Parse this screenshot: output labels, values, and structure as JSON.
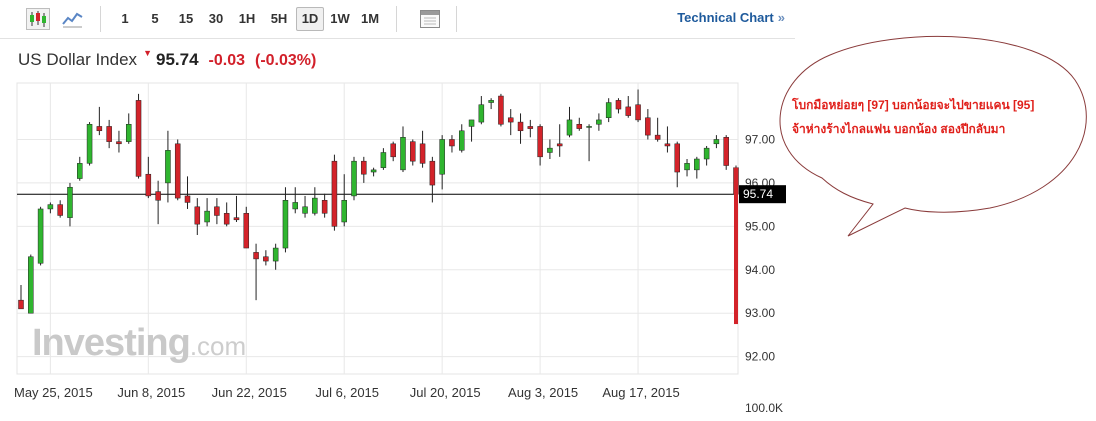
{
  "toolbar": {
    "icons": [
      "candlestick-icon",
      "line-chart-icon",
      "calendar-icon"
    ],
    "timeframes": [
      "1",
      "5",
      "15",
      "30",
      "1H",
      "5H",
      "1D",
      "1W",
      "1M"
    ],
    "active_timeframe": "1D",
    "tech_link_label": "Technical Chart",
    "tech_link_chevron": "»"
  },
  "quote": {
    "name": "US Dollar Index",
    "arrow": "▼",
    "price": "95.74",
    "change": "-0.03",
    "change_pct": "(-0.03%)"
  },
  "watermark": {
    "brand": "Investing",
    "suffix": ".com"
  },
  "annotation": {
    "line1": "โบกมือหย่อยๆ [97] บอกน้อยจะไปขายแคน [95]",
    "line2": "จ้าห่างร้างไกลแฟน   บอกน้อง   สองปีกลับมา"
  },
  "colors": {
    "up": "#2fb52f",
    "down": "#d3232a",
    "accent_text": "#e0201b",
    "link": "#1e5a9c"
  },
  "chart_data": {
    "type": "candlestick",
    "instrument": "US Dollar Index",
    "x_tick_labels": [
      "May 25, 2015",
      "Jun 8, 2015",
      "Jun 22, 2015",
      "Jul 6, 2015",
      "Jul 20, 2015",
      "Aug 3, 2015",
      "Aug 17, 2015"
    ],
    "y_tick_labels": [
      "97.00",
      "96.00",
      "95.00",
      "94.00",
      "93.00",
      "92.00"
    ],
    "y_ticks": [
      97,
      96,
      95,
      94,
      93,
      92
    ],
    "ylim": [
      91.6,
      98.3
    ],
    "volume_label": "100.0K",
    "last_price_label": "95.74",
    "horizontal_line": 95.74,
    "grid": true,
    "candles": [
      {
        "o": 93.3,
        "h": 93.65,
        "l": 93.15,
        "c": 93.1
      },
      {
        "o": 93.0,
        "h": 94.35,
        "l": 93.0,
        "c": 94.3
      },
      {
        "o": 94.15,
        "h": 95.45,
        "l": 94.1,
        "c": 95.4
      },
      {
        "o": 95.4,
        "h": 95.55,
        "l": 95.3,
        "c": 95.5
      },
      {
        "o": 95.5,
        "h": 95.6,
        "l": 95.2,
        "c": 95.25
      },
      {
        "o": 95.2,
        "h": 96.0,
        "l": 95.0,
        "c": 95.9
      },
      {
        "o": 96.1,
        "h": 96.6,
        "l": 96.05,
        "c": 96.45
      },
      {
        "o": 96.45,
        "h": 97.4,
        "l": 96.4,
        "c": 97.35
      },
      {
        "o": 97.3,
        "h": 97.75,
        "l": 97.1,
        "c": 97.2
      },
      {
        "o": 97.3,
        "h": 97.45,
        "l": 96.8,
        "c": 96.95
      },
      {
        "o": 96.95,
        "h": 97.2,
        "l": 96.7,
        "c": 96.9
      },
      {
        "o": 96.95,
        "h": 97.6,
        "l": 96.9,
        "c": 97.35
      },
      {
        "o": 97.9,
        "h": 98.05,
        "l": 96.1,
        "c": 96.15
      },
      {
        "o": 96.2,
        "h": 96.6,
        "l": 95.65,
        "c": 95.7
      },
      {
        "o": 95.8,
        "h": 96.05,
        "l": 95.05,
        "c": 95.6
      },
      {
        "o": 96.0,
        "h": 97.2,
        "l": 95.55,
        "c": 96.75
      },
      {
        "o": 96.9,
        "h": 97.0,
        "l": 95.6,
        "c": 95.65
      },
      {
        "o": 95.7,
        "h": 96.15,
        "l": 95.4,
        "c": 95.55
      },
      {
        "o": 95.45,
        "h": 95.65,
        "l": 94.8,
        "c": 95.05
      },
      {
        "o": 95.1,
        "h": 95.65,
        "l": 95.0,
        "c": 95.35
      },
      {
        "o": 95.45,
        "h": 95.65,
        "l": 95.05,
        "c": 95.25
      },
      {
        "o": 95.3,
        "h": 95.55,
        "l": 95.0,
        "c": 95.05
      },
      {
        "o": 95.2,
        "h": 95.7,
        "l": 95.1,
        "c": 95.15
      },
      {
        "o": 95.3,
        "h": 95.45,
        "l": 94.5,
        "c": 94.5
      },
      {
        "o": 94.4,
        "h": 94.6,
        "l": 93.3,
        "c": 94.25
      },
      {
        "o": 94.3,
        "h": 94.45,
        "l": 94.1,
        "c": 94.2
      },
      {
        "o": 94.2,
        "h": 94.6,
        "l": 94.0,
        "c": 94.5
      },
      {
        "o": 94.5,
        "h": 95.9,
        "l": 94.4,
        "c": 95.6
      },
      {
        "o": 95.4,
        "h": 95.9,
        "l": 95.3,
        "c": 95.55
      },
      {
        "o": 95.3,
        "h": 95.7,
        "l": 95.2,
        "c": 95.45
      },
      {
        "o": 95.3,
        "h": 95.9,
        "l": 95.25,
        "c": 95.65
      },
      {
        "o": 95.6,
        "h": 95.75,
        "l": 95.2,
        "c": 95.3
      },
      {
        "o": 96.5,
        "h": 96.65,
        "l": 94.9,
        "c": 95.0
      },
      {
        "o": 95.1,
        "h": 96.2,
        "l": 95.0,
        "c": 95.6
      },
      {
        "o": 95.7,
        "h": 96.6,
        "l": 95.6,
        "c": 96.5
      },
      {
        "o": 96.5,
        "h": 96.6,
        "l": 96.0,
        "c": 96.2
      },
      {
        "o": 96.25,
        "h": 96.35,
        "l": 96.15,
        "c": 96.3
      },
      {
        "o": 96.35,
        "h": 96.8,
        "l": 96.3,
        "c": 96.7
      },
      {
        "o": 96.9,
        "h": 96.95,
        "l": 96.5,
        "c": 96.6
      },
      {
        "o": 96.3,
        "h": 97.3,
        "l": 96.25,
        "c": 97.05
      },
      {
        "o": 96.95,
        "h": 97.0,
        "l": 96.4,
        "c": 96.5
      },
      {
        "o": 96.9,
        "h": 97.2,
        "l": 96.35,
        "c": 96.45
      },
      {
        "o": 96.5,
        "h": 96.6,
        "l": 95.55,
        "c": 95.95
      },
      {
        "o": 96.2,
        "h": 97.1,
        "l": 95.85,
        "c": 97.0
      },
      {
        "o": 97.0,
        "h": 97.1,
        "l": 96.7,
        "c": 96.85
      },
      {
        "o": 96.75,
        "h": 97.35,
        "l": 96.7,
        "c": 97.2
      },
      {
        "o": 97.3,
        "h": 97.45,
        "l": 96.95,
        "c": 97.45
      },
      {
        "o": 97.4,
        "h": 98.0,
        "l": 97.35,
        "c": 97.8
      },
      {
        "o": 97.85,
        "h": 97.95,
        "l": 97.7,
        "c": 97.9
      },
      {
        "o": 98.0,
        "h": 98.05,
        "l": 97.3,
        "c": 97.35
      },
      {
        "o": 97.5,
        "h": 97.7,
        "l": 97.1,
        "c": 97.4
      },
      {
        "o": 97.4,
        "h": 97.6,
        "l": 96.9,
        "c": 97.2
      },
      {
        "o": 97.3,
        "h": 97.45,
        "l": 97.05,
        "c": 97.25
      },
      {
        "o": 97.3,
        "h": 97.35,
        "l": 96.4,
        "c": 96.6
      },
      {
        "o": 96.7,
        "h": 97.0,
        "l": 96.55,
        "c": 96.8
      },
      {
        "o": 96.9,
        "h": 97.35,
        "l": 96.6,
        "c": 96.85
      },
      {
        "o": 97.1,
        "h": 97.75,
        "l": 97.05,
        "c": 97.45
      },
      {
        "o": 97.35,
        "h": 97.5,
        "l": 97.2,
        "c": 97.25
      },
      {
        "o": 97.3,
        "h": 97.35,
        "l": 96.5,
        "c": 97.3
      },
      {
        "o": 97.35,
        "h": 97.6,
        "l": 97.2,
        "c": 97.45
      },
      {
        "o": 97.5,
        "h": 97.95,
        "l": 97.4,
        "c": 97.85
      },
      {
        "o": 97.9,
        "h": 97.95,
        "l": 97.6,
        "c": 97.7
      },
      {
        "o": 97.75,
        "h": 98.0,
        "l": 97.5,
        "c": 97.55
      },
      {
        "o": 97.8,
        "h": 98.15,
        "l": 97.4,
        "c": 97.45
      },
      {
        "o": 97.5,
        "h": 97.7,
        "l": 97.0,
        "c": 97.1
      },
      {
        "o": 97.1,
        "h": 97.5,
        "l": 96.95,
        "c": 97.0
      },
      {
        "o": 96.9,
        "h": 97.3,
        "l": 96.7,
        "c": 96.85
      },
      {
        "o": 96.9,
        "h": 96.95,
        "l": 95.9,
        "c": 96.25
      },
      {
        "o": 96.3,
        "h": 96.55,
        "l": 96.15,
        "c": 96.45
      },
      {
        "o": 96.3,
        "h": 96.6,
        "l": 96.1,
        "c": 96.55
      },
      {
        "o": 96.55,
        "h": 96.85,
        "l": 96.4,
        "c": 96.8
      },
      {
        "o": 96.9,
        "h": 97.1,
        "l": 96.8,
        "c": 97.0
      },
      {
        "o": 97.05,
        "h": 97.1,
        "l": 96.3,
        "c": 96.4
      },
      {
        "o": 96.35,
        "h": 96.4,
        "l": 92.75,
        "c": 95.74
      }
    ]
  }
}
